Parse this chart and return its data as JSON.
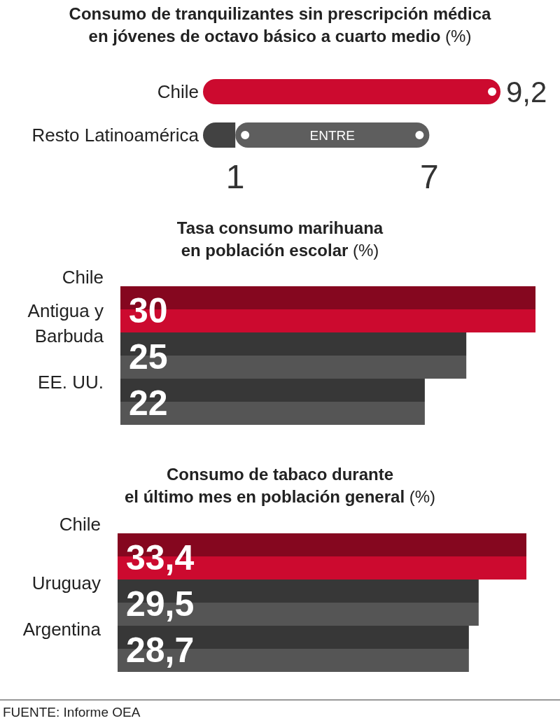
{
  "chart_data": [
    {
      "type": "bar",
      "orientation": "horizontal",
      "title": "Consumo de tranquilizantes sin prescripción médica\nen jóvenes de octavo básico a cuarto medio (%)",
      "categories": [
        "Chile",
        "Resto Latinoamérica"
      ],
      "stacked": true,
      "series": [
        {
          "colors": [
            "#cc0a2f",
            "#424242"
          ],
          "values": [
            9.2,
            1
          ]
        },
        {
          "colors": [
            null,
            "#5e5e5e"
          ],
          "values": [
            null,
            6
          ]
        }
      ],
      "value_labels": [
        "9,2",
        null
      ],
      "xlim": [
        0,
        9.2
      ],
      "xticks": [
        1,
        7
      ],
      "annotations": [
        "ENTRE"
      ]
    },
    {
      "type": "bar",
      "orientation": "horizontal",
      "title": "Tasa consumo marihuana\nen población escolar (%)",
      "categories": [
        "Chile",
        "Antigua y Barbuda",
        "EE. UU."
      ],
      "values": [
        30,
        25,
        22
      ],
      "colors": [
        "#cc0a2f",
        "#555555",
        "#555555"
      ],
      "data_labels": true
    },
    {
      "type": "bar",
      "orientation": "horizontal",
      "title": "Consumo de tabaco durante\nel último mes en población general (%)",
      "categories": [
        "Chile",
        "Uruguay",
        "Argentina"
      ],
      "values": [
        33.4,
        29.5,
        28.7
      ],
      "colors": [
        "#cc0a2f",
        "#555555",
        "#555555"
      ],
      "value_labels": [
        "33,4",
        "29,5",
        "28,7"
      ],
      "annotations": [
        "FUENTE: Informe OEA"
      ]
    }
  ]
}
